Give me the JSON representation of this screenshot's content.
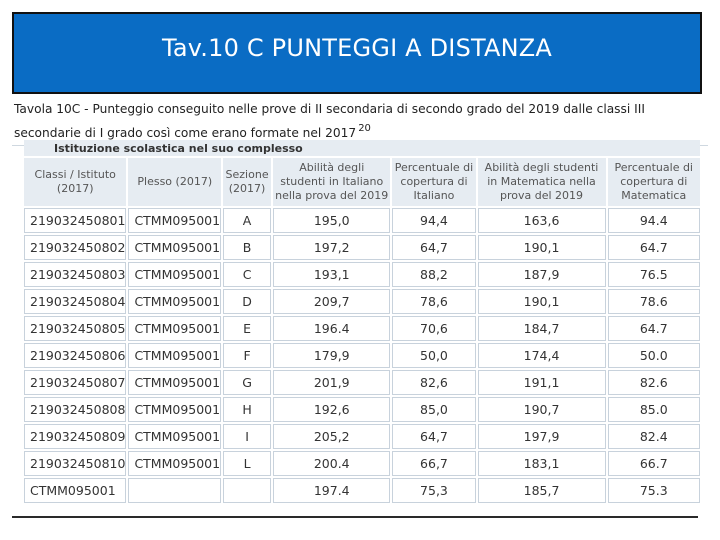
{
  "slide": {
    "title": "Tav.10 C PUNTEGGI A DISTANZA"
  },
  "caption": {
    "text": "Tavola 10C - Punteggio conseguito nelle prove di II secondaria di secondo grado del 2019 dalle classi III secondarie di I grado così come erano formate nel 2017",
    "superscript": "20"
  },
  "table": {
    "group_header": "Istituzione scolastica nel suo complesso",
    "columns": [
      "Classi / Istituto (2017)",
      "Plesso (2017)",
      "Sezione (2017)",
      "Abilità degli studenti in Italiano nella prova del 2019",
      "Percentuale di copertura di Italiano",
      "Abilità degli studenti in Matematica nella prova del 2019",
      "Percentuale di copertura di Matematica"
    ],
    "rows": [
      [
        "219032450801",
        "CTMM095001",
        "A",
        "195,0",
        "94,4",
        "163,6",
        "94.4"
      ],
      [
        "219032450802",
        "CTMM095001",
        "B",
        "197,2",
        "64,7",
        "190,1",
        "64.7"
      ],
      [
        "219032450803",
        "CTMM095001",
        "C",
        "193,1",
        "88,2",
        "187,9",
        "76.5"
      ],
      [
        "219032450804",
        "CTMM095001",
        "D",
        "209,7",
        "78,6",
        "190,1",
        "78.6"
      ],
      [
        "219032450805",
        "CTMM095001",
        "E",
        "196.4",
        "70,6",
        "184,7",
        "64.7"
      ],
      [
        "219032450806",
        "CTMM095001",
        "F",
        "179,9",
        "50,0",
        "174,4",
        "50.0"
      ],
      [
        "219032450807",
        "CTMM095001",
        "G",
        "201,9",
        "82,6",
        "191,1",
        "82.6"
      ],
      [
        "219032450808",
        "CTMM095001",
        "H",
        "192,6",
        "85,0",
        "190,7",
        "85.0"
      ],
      [
        "219032450809",
        "CTMM095001",
        "I",
        "205,2",
        "64,7",
        "197,9",
        "82.4"
      ],
      [
        "219032450810",
        "CTMM095001",
        "L",
        "200.4",
        "66,7",
        "183,1",
        "66.7"
      ],
      [
        "CTMM095001",
        "",
        "",
        "197.4",
        "75,3",
        "185,7",
        "75.3"
      ]
    ]
  }
}
